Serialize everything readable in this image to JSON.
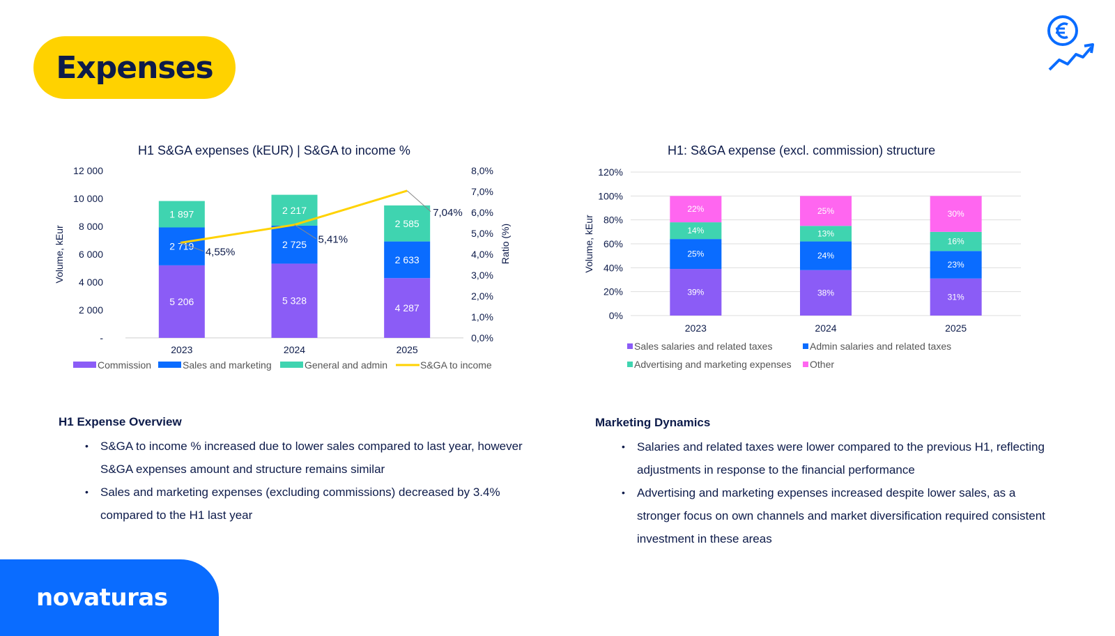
{
  "page": {
    "title": "Expenses",
    "brand": "novaturas"
  },
  "colors": {
    "yellow": "#ffd200",
    "blue": "#0a6cff",
    "purple": "#8b5cf6",
    "teal": "#3fd4b0",
    "pink": "#ff66f0",
    "navy": "#0d1b4a"
  },
  "icons": {
    "top_right": "euro-growth-icon"
  },
  "chart_data": [
    {
      "type": "bar",
      "title": "H1 S&GA expenses (kEUR) | S&GA to income %",
      "categories": [
        "2023",
        "2024",
        "2025"
      ],
      "series": [
        {
          "name": "Commission",
          "values": [
            5206,
            5328,
            4287
          ],
          "labels": [
            "5 206",
            "5 328",
            "4 287"
          ]
        },
        {
          "name": "Sales and marketing",
          "values": [
            2719,
            2725,
            2633
          ],
          "labels": [
            "2 719",
            "2 725",
            "2 633"
          ]
        },
        {
          "name": "General and admin",
          "values": [
            1897,
            2217,
            2585
          ],
          "labels": [
            "1 897",
            "2 217",
            "2 585"
          ]
        }
      ],
      "line_series": {
        "name": "S&GA to income",
        "values": [
          4.55,
          5.41,
          7.04
        ],
        "labels": [
          "4,55%",
          "5,41%",
          "7,04%"
        ]
      },
      "ylabel": "Volume, kEur",
      "y2label": "Ratio (%)",
      "ylim": [
        0,
        12000
      ],
      "y2lim": [
        0,
        8
      ],
      "yticks": [
        "-",
        "2 000",
        "4 000",
        "6 000",
        "8 000",
        "10 000",
        "12 000"
      ],
      "y2ticks": [
        "0,0%",
        "1,0%",
        "2,0%",
        "3,0%",
        "4,0%",
        "5,0%",
        "6,0%",
        "7,0%",
        "8,0%"
      ],
      "legend": "bottom"
    },
    {
      "type": "bar",
      "title": "H1: S&GA expense (excl. commission) structure",
      "categories": [
        "2023",
        "2024",
        "2025"
      ],
      "series": [
        {
          "name": "Sales salaries and related taxes",
          "values": [
            39,
            38,
            31
          ]
        },
        {
          "name": "Admin salaries and related taxes",
          "values": [
            25,
            24,
            23
          ]
        },
        {
          "name": "Advertising and marketing expenses",
          "values": [
            14,
            13,
            16
          ]
        },
        {
          "name": "Other",
          "values": [
            22,
            25,
            30
          ]
        }
      ],
      "ylabel": "Volume, kEur",
      "ylim": [
        0,
        120
      ],
      "yticks": [
        "0%",
        "20%",
        "40%",
        "60%",
        "80%",
        "100%",
        "120%"
      ],
      "grid": true,
      "legend": "bottom"
    }
  ],
  "sections": {
    "left": {
      "heading": "H1 Expense Overview",
      "bullets": [
        "S&GA to income % increased due to lower sales compared to last year, however S&GA expenses amount and structure remains similar",
        "Sales and marketing expenses (excluding commissions) decreased by 3.4% compared to the H1 last year"
      ]
    },
    "right": {
      "heading": "Marketing Dynamics",
      "bullets": [
        "Salaries and related taxes were lower compared to the previous H1, reflecting adjustments in response to the financial performance",
        "Advertising and marketing expenses increased despite lower sales, as a stronger focus on own channels and market diversification required consistent investment in these areas"
      ]
    }
  }
}
